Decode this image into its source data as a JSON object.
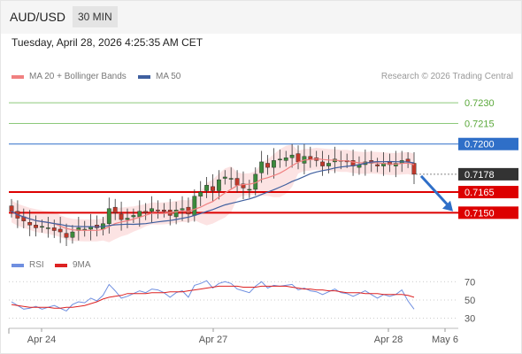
{
  "header": {
    "symbol": "AUD/USD",
    "timeframe": "30 MIN",
    "timestamp": "Tuesday, April 28, 2026 4:25:35 AM CET"
  },
  "legend": {
    "ma20": "MA 20 + Bollinger Bands",
    "ma50": "MA 50",
    "rsi": "RSI",
    "rsi_ma": "9MA"
  },
  "credit": "Research © 2026 Trading Central",
  "colors": {
    "bull": "#3c8a3c",
    "bear": "#c0392b",
    "ma20": "#f08080",
    "ma50": "#3f5f9f",
    "band": "#fbdada",
    "resistance": "#8cc97a",
    "pivot": "#2f6fc8",
    "support": "#dd0000",
    "last": "#333333",
    "rsi": "#6f8fe0",
    "rsi_ma": "#dd2222"
  },
  "chart_data": [
    {
      "type": "candlestick",
      "title": "",
      "x_tick_labels": [
        "Apr 24",
        "Apr 27",
        "Apr 28",
        "May 6"
      ],
      "ylim": [
        0.7118,
        0.7243
      ],
      "price_levels": [
        {
          "value": 0.723,
          "label": "0.7230",
          "kind": "resistance"
        },
        {
          "value": 0.7215,
          "label": "0.7215",
          "kind": "resistance"
        },
        {
          "value": 0.72,
          "label": "0.7200",
          "kind": "pivot"
        },
        {
          "value": 0.7178,
          "label": "0.7178",
          "kind": "last"
        },
        {
          "value": 0.7165,
          "label": "0.7165",
          "kind": "support"
        },
        {
          "value": 0.715,
          "label": "0.7150",
          "kind": "support"
        }
      ],
      "close_path": [
        0.7151,
        0.7146,
        0.7144,
        0.7141,
        0.7139,
        0.714,
        0.7139,
        0.7137,
        0.7136,
        0.7132,
        0.7136,
        0.7139,
        0.7138,
        0.714,
        0.7139,
        0.7142,
        0.7153,
        0.715,
        0.7145,
        0.7146,
        0.7148,
        0.7151,
        0.715,
        0.7153,
        0.7152,
        0.7151,
        0.7148,
        0.7152,
        0.7153,
        0.7149,
        0.7162,
        0.7165,
        0.717,
        0.7166,
        0.7174,
        0.7176,
        0.7175,
        0.717,
        0.7168,
        0.7167,
        0.7178,
        0.7187,
        0.7183,
        0.7188,
        0.7189,
        0.719,
        0.7192,
        0.7187,
        0.7191,
        0.7189,
        0.7188,
        0.7184,
        0.7186,
        0.7189,
        0.7188,
        0.7187,
        0.7184,
        0.7185,
        0.7187,
        0.7186,
        0.7184,
        0.7186,
        0.7185,
        0.7186,
        0.7188,
        0.7187,
        0.7178
      ],
      "forecast_arrow": "down"
    },
    {
      "type": "line",
      "title": "RSI",
      "y_tick_labels": [
        "70",
        "50",
        "30"
      ],
      "ylim": [
        20,
        78
      ],
      "series": [
        {
          "name": "RSI",
          "values": [
            48,
            44,
            40,
            41,
            43,
            40,
            42,
            44,
            41,
            38,
            45,
            48,
            47,
            52,
            49,
            55,
            67,
            60,
            52,
            54,
            57,
            60,
            58,
            62,
            61,
            58,
            53,
            58,
            60,
            53,
            66,
            68,
            71,
            63,
            68,
            70,
            68,
            62,
            60,
            58,
            65,
            70,
            63,
            66,
            65,
            66,
            67,
            61,
            63,
            60,
            59,
            56,
            59,
            62,
            58,
            57,
            54,
            57,
            60,
            56,
            52,
            56,
            54,
            56,
            61,
            49,
            40
          ]
        },
        {
          "name": "9MA",
          "values": [
            45,
            44,
            43,
            42,
            42,
            42,
            42,
            41,
            41,
            42,
            42,
            43,
            44,
            46,
            48,
            51,
            53,
            54,
            55,
            57,
            57,
            57,
            57,
            58,
            58,
            58,
            59,
            59,
            59,
            60,
            61,
            62,
            63,
            64,
            65,
            65,
            65,
            65,
            64,
            64,
            64,
            65,
            65,
            65,
            65,
            65,
            64,
            63,
            62,
            62,
            61,
            61,
            60,
            60,
            59,
            58,
            58,
            58,
            57,
            57,
            57,
            56,
            56,
            56,
            56,
            55,
            53
          ]
        }
      ]
    }
  ]
}
